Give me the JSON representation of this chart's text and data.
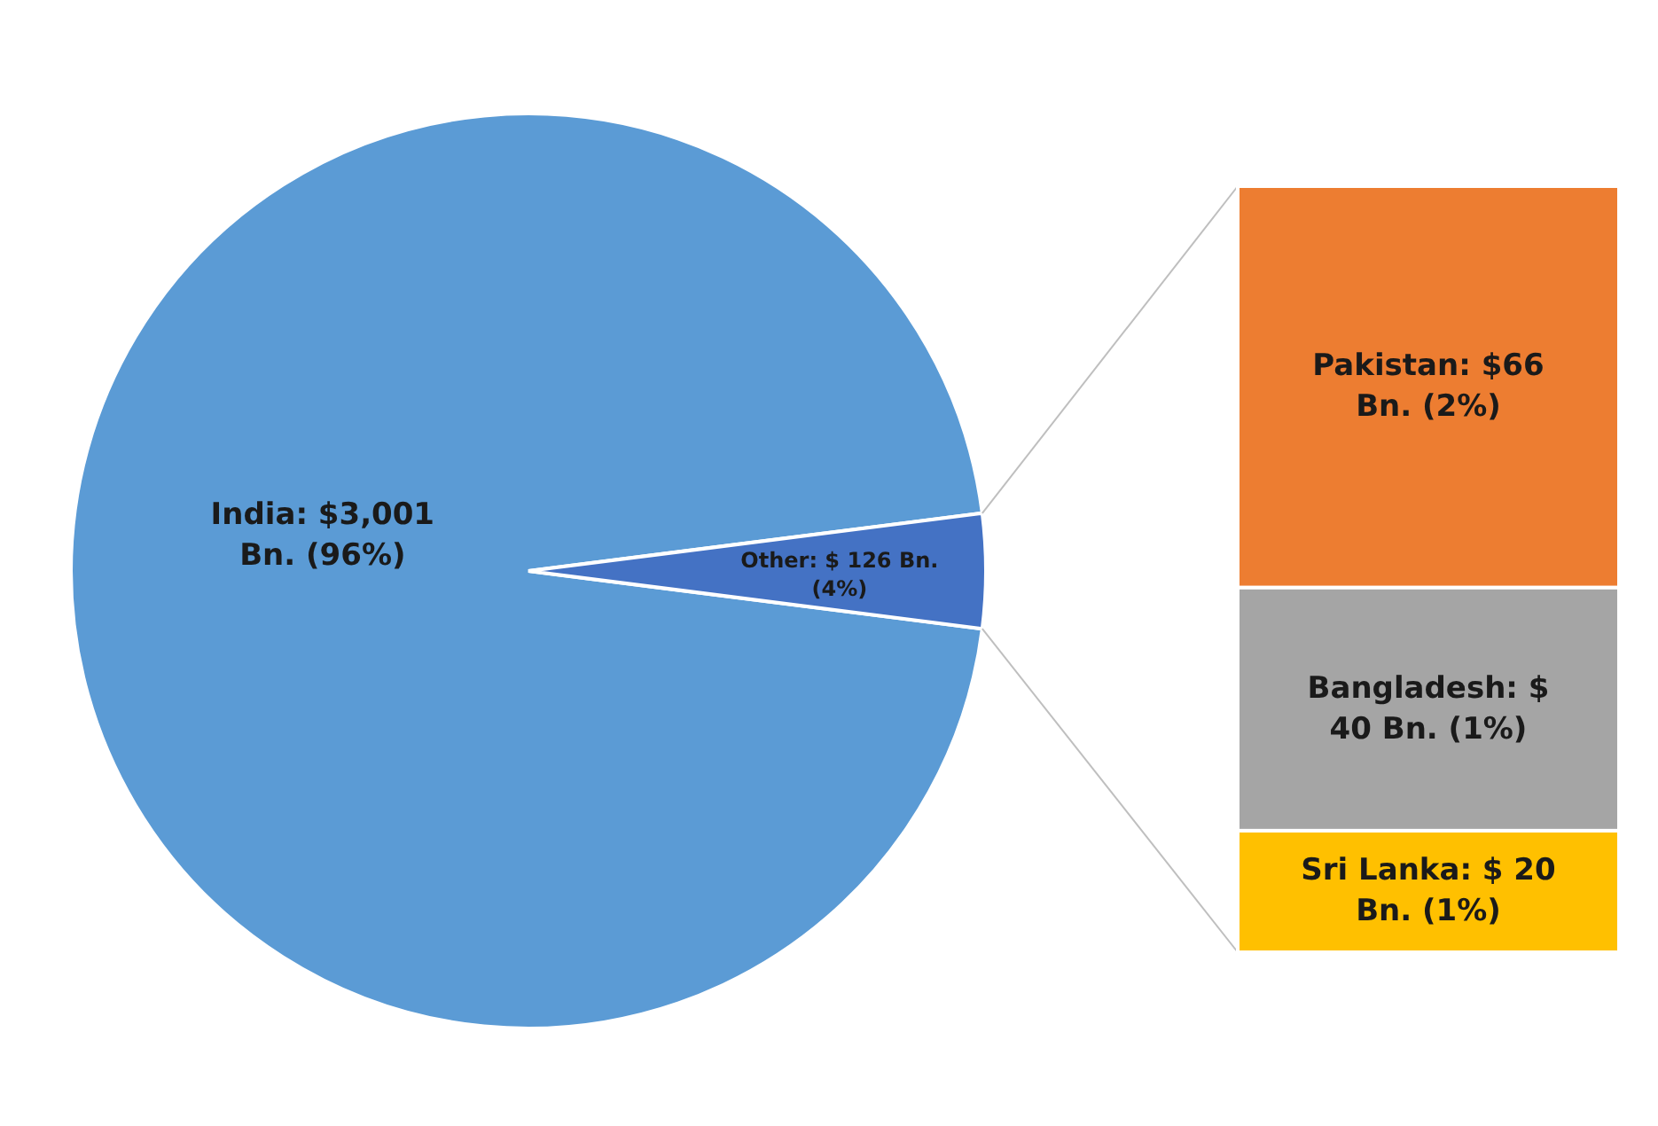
{
  "chart_data": [
    {
      "type": "pie",
      "categories": [
        "India",
        "Other"
      ],
      "values": [
        3001,
        126
      ],
      "colors": [
        "#5b9bd5",
        "#4472c4"
      ],
      "value_labels": [
        "$3,001 Bn. (96%)",
        "$ 126 Bn. (4%)"
      ]
    },
    {
      "type": "bar",
      "stacked": true,
      "categories": [
        null
      ],
      "series": [
        {
          "color": "#ffc000",
          "values": [
            20
          ],
          "value_labels": [
            "Sri Lanka: $ 20 Bn. (1%)"
          ]
        },
        {
          "color": "#a5a5a5",
          "values": [
            40
          ],
          "value_labels": [
            "Bangladesh: $ 40 Bn. (1%)"
          ]
        },
        {
          "color": "#ed7d31",
          "values": [
            66
          ],
          "value_labels": [
            "Pakistan: $66 Bn. (2%)"
          ]
        }
      ]
    }
  ]
}
